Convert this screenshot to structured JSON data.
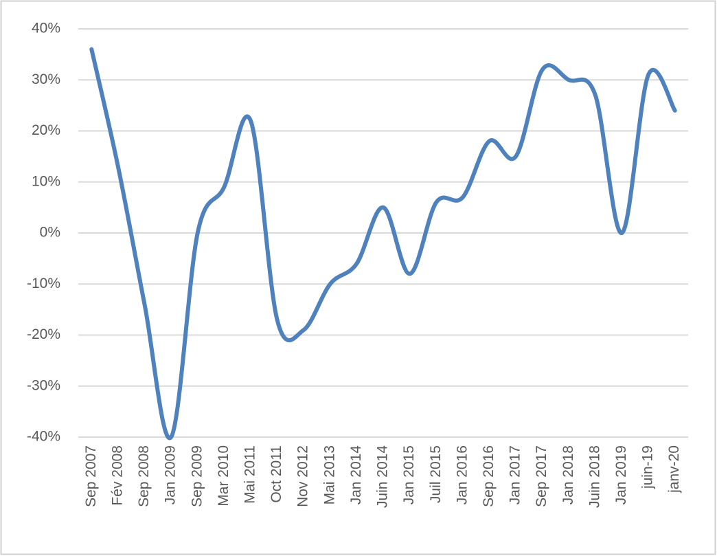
{
  "chart_data": {
    "type": "line",
    "categories": [
      "Sep 2007",
      "Fév 2008",
      "Sep 2008",
      "Jan 2009",
      "Sep 2009",
      "Mar 2010",
      "Mai 2011",
      "Oct 2011",
      "Nov 2012",
      "Mai 2013",
      "Jan 2014",
      "Juin 2014",
      "Jan 2015",
      "Juil 2015",
      "Jan 2016",
      "Sep 2016",
      "Jan 2017",
      "Sep 2017",
      "Jan 2018",
      "Juin 2018",
      "Jan 2019",
      "juin-19",
      "janv-20"
    ],
    "values": [
      36,
      13,
      -14,
      -40,
      0,
      9,
      22,
      -17,
      -19,
      -10,
      -6,
      5,
      -8,
      6,
      7,
      18,
      15,
      32,
      30,
      27,
      0,
      31,
      24
    ],
    "color": "#4f81bd",
    "ylim": [
      -40,
      40
    ],
    "yticks": [
      {
        "value": -40,
        "label": "-40%"
      },
      {
        "value": -30,
        "label": "-30%"
      },
      {
        "value": -20,
        "label": "-20%"
      },
      {
        "value": -10,
        "label": "-10%"
      },
      {
        "value": 0,
        "label": "0%"
      },
      {
        "value": 10,
        "label": "10%"
      },
      {
        "value": 20,
        "label": "20%"
      },
      {
        "value": 30,
        "label": "30%"
      },
      {
        "value": 40,
        "label": "40%"
      }
    ],
    "grid": true
  }
}
